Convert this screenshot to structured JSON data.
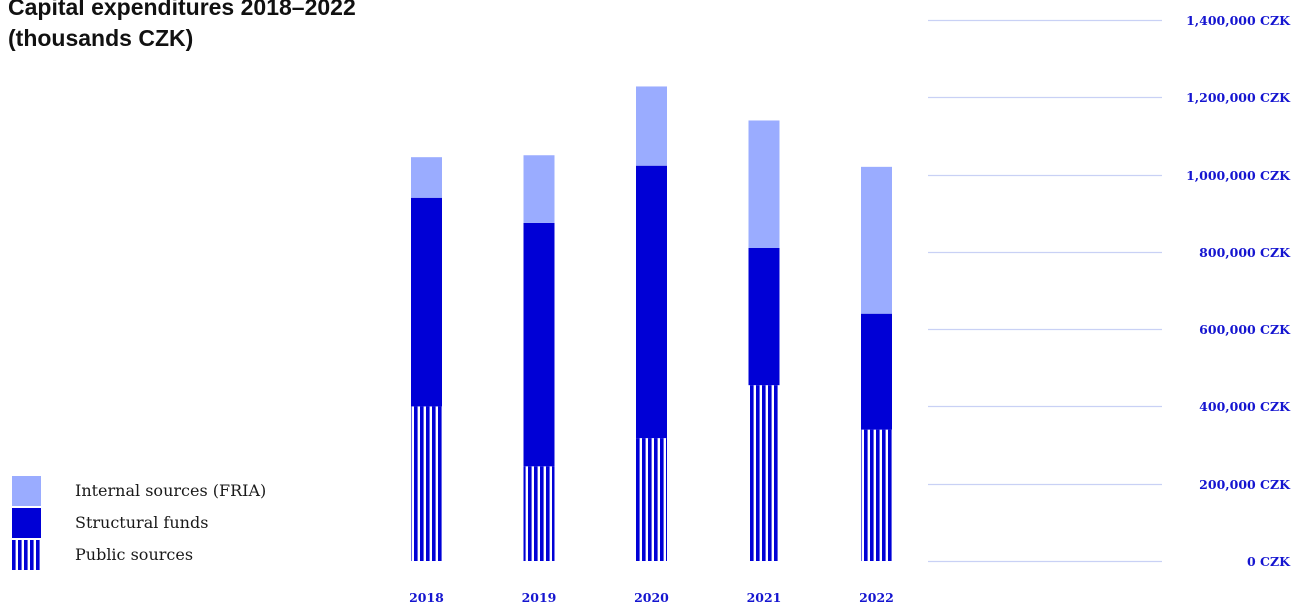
{
  "colors": {
    "internal": "#9aacff",
    "structural": "#0000d6",
    "public_stripe": "#0000d6",
    "grid": "#c9d1f5",
    "axis_text": "#1515d0"
  },
  "legend": {
    "items": [
      {
        "label": "Internal sources (FRIA)",
        "key": "internal"
      },
      {
        "label": "Structural funds",
        "key": "structural"
      },
      {
        "label": "Public sources",
        "key": "public"
      }
    ]
  },
  "chart_data": {
    "type": "bar",
    "stacked": true,
    "title": "Capital expenditures 2018–2022 (thousands CZK)",
    "title_lines": [
      "Capital expenditures 2018–2022",
      "(thousands CZK)"
    ],
    "categories": [
      "2018",
      "2019",
      "2020",
      "2021",
      "2022"
    ],
    "series": [
      {
        "name": "Public sources",
        "key": "public",
        "values": [
          400000,
          245000,
          318000,
          455000,
          340000
        ]
      },
      {
        "name": "Structural funds",
        "key": "structural",
        "values": [
          540000,
          630000,
          705000,
          355000,
          300000
        ]
      },
      {
        "name": "Internal sources (FRIA)",
        "key": "internal",
        "values": [
          105000,
          175000,
          205000,
          330000,
          380000
        ]
      }
    ],
    "ylim": [
      0,
      1400000
    ],
    "yticks": [
      0,
      200000,
      400000,
      600000,
      800000,
      1000000,
      1200000,
      1400000
    ],
    "ytick_labels": [
      "0 CZK",
      "200,000 CZK",
      "400,000 CZK",
      "600,000 CZK",
      "800,000 CZK",
      "1,000,000 CZK",
      "1,200,000 CZK",
      "1,400,000 CZK"
    ],
    "xlabel": "",
    "ylabel": "",
    "grid": true,
    "yaxis_position": "right",
    "legend_position": "bottom-left"
  }
}
